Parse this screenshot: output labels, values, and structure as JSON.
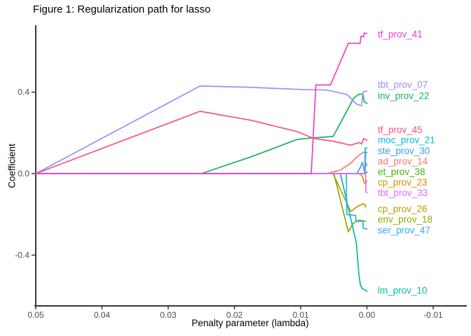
{
  "title": "Figure 1: Regularization path for lasso",
  "chart_data": {
    "type": "line",
    "title": "Figure 1: Regularization path for lasso",
    "xlabel": "Penalty parameter (lambda)",
    "ylabel": "Coefficient",
    "xlim": [
      0.05,
      -0.01
    ],
    "ylim": [
      -0.66,
      0.74
    ],
    "x_axis_reversed": true,
    "grid": false,
    "legend_position": "direct-labels-right",
    "x_ticks": [
      0.05,
      0.04,
      0.03,
      0.02,
      0.01,
      0.0,
      -0.01
    ],
    "x_tick_labels": [
      "0.05",
      "0.04",
      "0.03",
      "0.02",
      "0.01",
      "0.00",
      "-0.01"
    ],
    "y_ticks": [
      0.4,
      0.0,
      -0.4
    ],
    "y_tick_labels": [
      "0.4",
      "0.0",
      "-0.4"
    ],
    "axis_color": "#383838",
    "tick_text_color": "#4d4d4d",
    "series": [
      {
        "name": "ad_prov_14",
        "color": "#F8766D",
        "label_value": 0.062,
        "points": [
          [
            0.05,
            0
          ],
          [
            0.006,
            0
          ],
          [
            0.004,
            0.018
          ],
          [
            0.0025,
            0.05
          ],
          [
            0.0012,
            0.09
          ],
          [
            0.0005,
            0.105
          ],
          [
            0.0003,
            0.105
          ],
          [
            0.00025,
            0.04
          ],
          [
            0.0001,
            0.038
          ],
          [
            0,
            0.05
          ]
        ]
      },
      {
        "name": "cp_prov_23",
        "color": "#E18A00",
        "label_value": -0.041,
        "points": [
          [
            0.05,
            0
          ],
          [
            0.0012,
            0
          ],
          [
            0.0007,
            -0.012
          ],
          [
            0.0004,
            -0.045
          ],
          [
            0.0002,
            -0.052
          ],
          [
            0.0001,
            -0.035
          ],
          [
            0,
            -0.038
          ]
        ]
      },
      {
        "name": "cp_prov_26",
        "color": "#BE9C00",
        "label_value": -0.172,
        "points": [
          [
            0.05,
            0
          ],
          [
            0.0051,
            0
          ],
          [
            0.0027,
            -0.169
          ],
          [
            0.0024,
            -0.186
          ],
          [
            0.0015,
            -0.163
          ],
          [
            0.0006,
            -0.148
          ],
          [
            0.0003,
            -0.152
          ],
          [
            0.0002,
            -0.165
          ]
        ]
      },
      {
        "name": "env_prov_18",
        "color": "#8CAB00",
        "label_value": -0.224,
        "points": [
          [
            0.05,
            0
          ],
          [
            0.005,
            0
          ],
          [
            0.0028,
            -0.286
          ],
          [
            0.0021,
            -0.245
          ],
          [
            0.0012,
            -0.228
          ],
          [
            0.0002,
            -0.234
          ]
        ]
      },
      {
        "name": "et_prov_38",
        "color": "#44B300",
        "label_value": 0.01,
        "points": [
          [
            0.05,
            0
          ],
          [
            0.0003,
            0
          ],
          [
            0,
            0.008
          ]
        ]
      },
      {
        "name": "inv_prov_22",
        "color": "#15B358",
        "label_value": 0.383,
        "points": [
          [
            0.05,
            0
          ],
          [
            0.025,
            0
          ],
          [
            0.0175,
            0.082
          ],
          [
            0.0105,
            0.168
          ],
          [
            0.008,
            0.176
          ],
          [
            0.0051,
            0.182
          ],
          [
            0.002,
            0.37
          ],
          [
            0.0012,
            0.39
          ],
          [
            0.0006,
            0.39
          ],
          [
            0.0004,
            0.352
          ],
          [
            0,
            0.345
          ]
        ]
      },
      {
        "name": "lm_prov_10",
        "color": "#00BE9B",
        "label_value": -0.572,
        "points": [
          [
            0.05,
            0
          ],
          [
            0.004,
            0
          ],
          [
            0.0016,
            -0.34
          ],
          [
            0.0012,
            -0.5
          ],
          [
            0.00095,
            -0.553
          ],
          [
            0.0008,
            -0.556
          ],
          [
            0.0007,
            -0.566
          ],
          [
            0.0003,
            -0.57
          ],
          [
            0,
            -0.578
          ]
        ]
      },
      {
        "name": "moc_prov_21",
        "color": "#00BBDA",
        "label_value": 0.166,
        "points": [
          [
            0.05,
            0
          ],
          [
            0.0003,
            0
          ],
          [
            0.00025,
            0.123
          ],
          [
            0,
            0.126
          ]
        ]
      },
      {
        "name": "ser_prov_47",
        "color": "#29ACF9",
        "label_value": -0.276,
        "points": [
          [
            0.05,
            0
          ],
          [
            0.0031,
            0
          ],
          [
            0.00305,
            -0.201
          ],
          [
            0.0017,
            -0.205
          ],
          [
            0.00165,
            -0.236
          ],
          [
            0.0006,
            -0.233
          ],
          [
            0.00055,
            -0.268
          ],
          [
            0,
            -0.272
          ]
        ]
      },
      {
        "name": "ste_prov_30",
        "color": "#3D9AFE",
        "label_value": 0.114,
        "points": [
          [
            0.05,
            0
          ],
          [
            0.0015,
            0
          ],
          [
            0.001,
            0.03
          ],
          [
            0.0007,
            0.055
          ],
          [
            0.0005,
            0.03
          ],
          [
            0.0003,
            0.002
          ],
          [
            0.0002,
            0.1
          ],
          [
            0,
            0.105
          ]
        ]
      },
      {
        "name": "tbt_prov_07",
        "color": "#9590FF",
        "label_value": 0.438,
        "points": [
          [
            0.05,
            0
          ],
          [
            0.0252,
            0.43
          ],
          [
            0.018,
            0.424
          ],
          [
            0.01,
            0.413
          ],
          [
            0.006,
            0.41
          ],
          [
            0.003,
            0.388
          ],
          [
            0.0015,
            0.34
          ],
          [
            0.0008,
            0.333
          ],
          [
            0.0006,
            0.4
          ],
          [
            0,
            0.405
          ]
        ]
      },
      {
        "name": "tbt_prov_33",
        "color": "#E76BF3",
        "label_value": -0.093,
        "points": [
          [
            0.05,
            0
          ],
          [
            0.0002,
            0
          ],
          [
            0.00015,
            -0.09
          ],
          [
            0,
            -0.094
          ]
        ]
      },
      {
        "name": "tf_prov_41",
        "color": "#F23EC4",
        "label_value": 0.686,
        "points": [
          [
            0.05,
            0
          ],
          [
            0.0084,
            0
          ],
          [
            0.0077,
            0.435
          ],
          [
            0.0055,
            0.435
          ],
          [
            0.0028,
            0.64
          ],
          [
            0.001,
            0.64
          ],
          [
            0.0009,
            0.675
          ],
          [
            0.0005,
            0.672
          ],
          [
            0.0004,
            0.69
          ],
          [
            0,
            0.688
          ]
        ]
      },
      {
        "name": "tf_prov_45",
        "color": "#FB517F",
        "label_value": 0.217,
        "points": [
          [
            0.05,
            0
          ],
          [
            0.0252,
            0.306
          ],
          [
            0.0175,
            0.262
          ],
          [
            0.0105,
            0.206
          ],
          [
            0.008,
            0.172
          ],
          [
            0.005,
            0.158
          ],
          [
            0.0025,
            0.14
          ],
          [
            0.0012,
            0.152
          ],
          [
            0.0008,
            0.145
          ],
          [
            0.0005,
            0.172
          ],
          [
            0.0002,
            0.166
          ],
          [
            0,
            0.165
          ]
        ]
      }
    ]
  }
}
